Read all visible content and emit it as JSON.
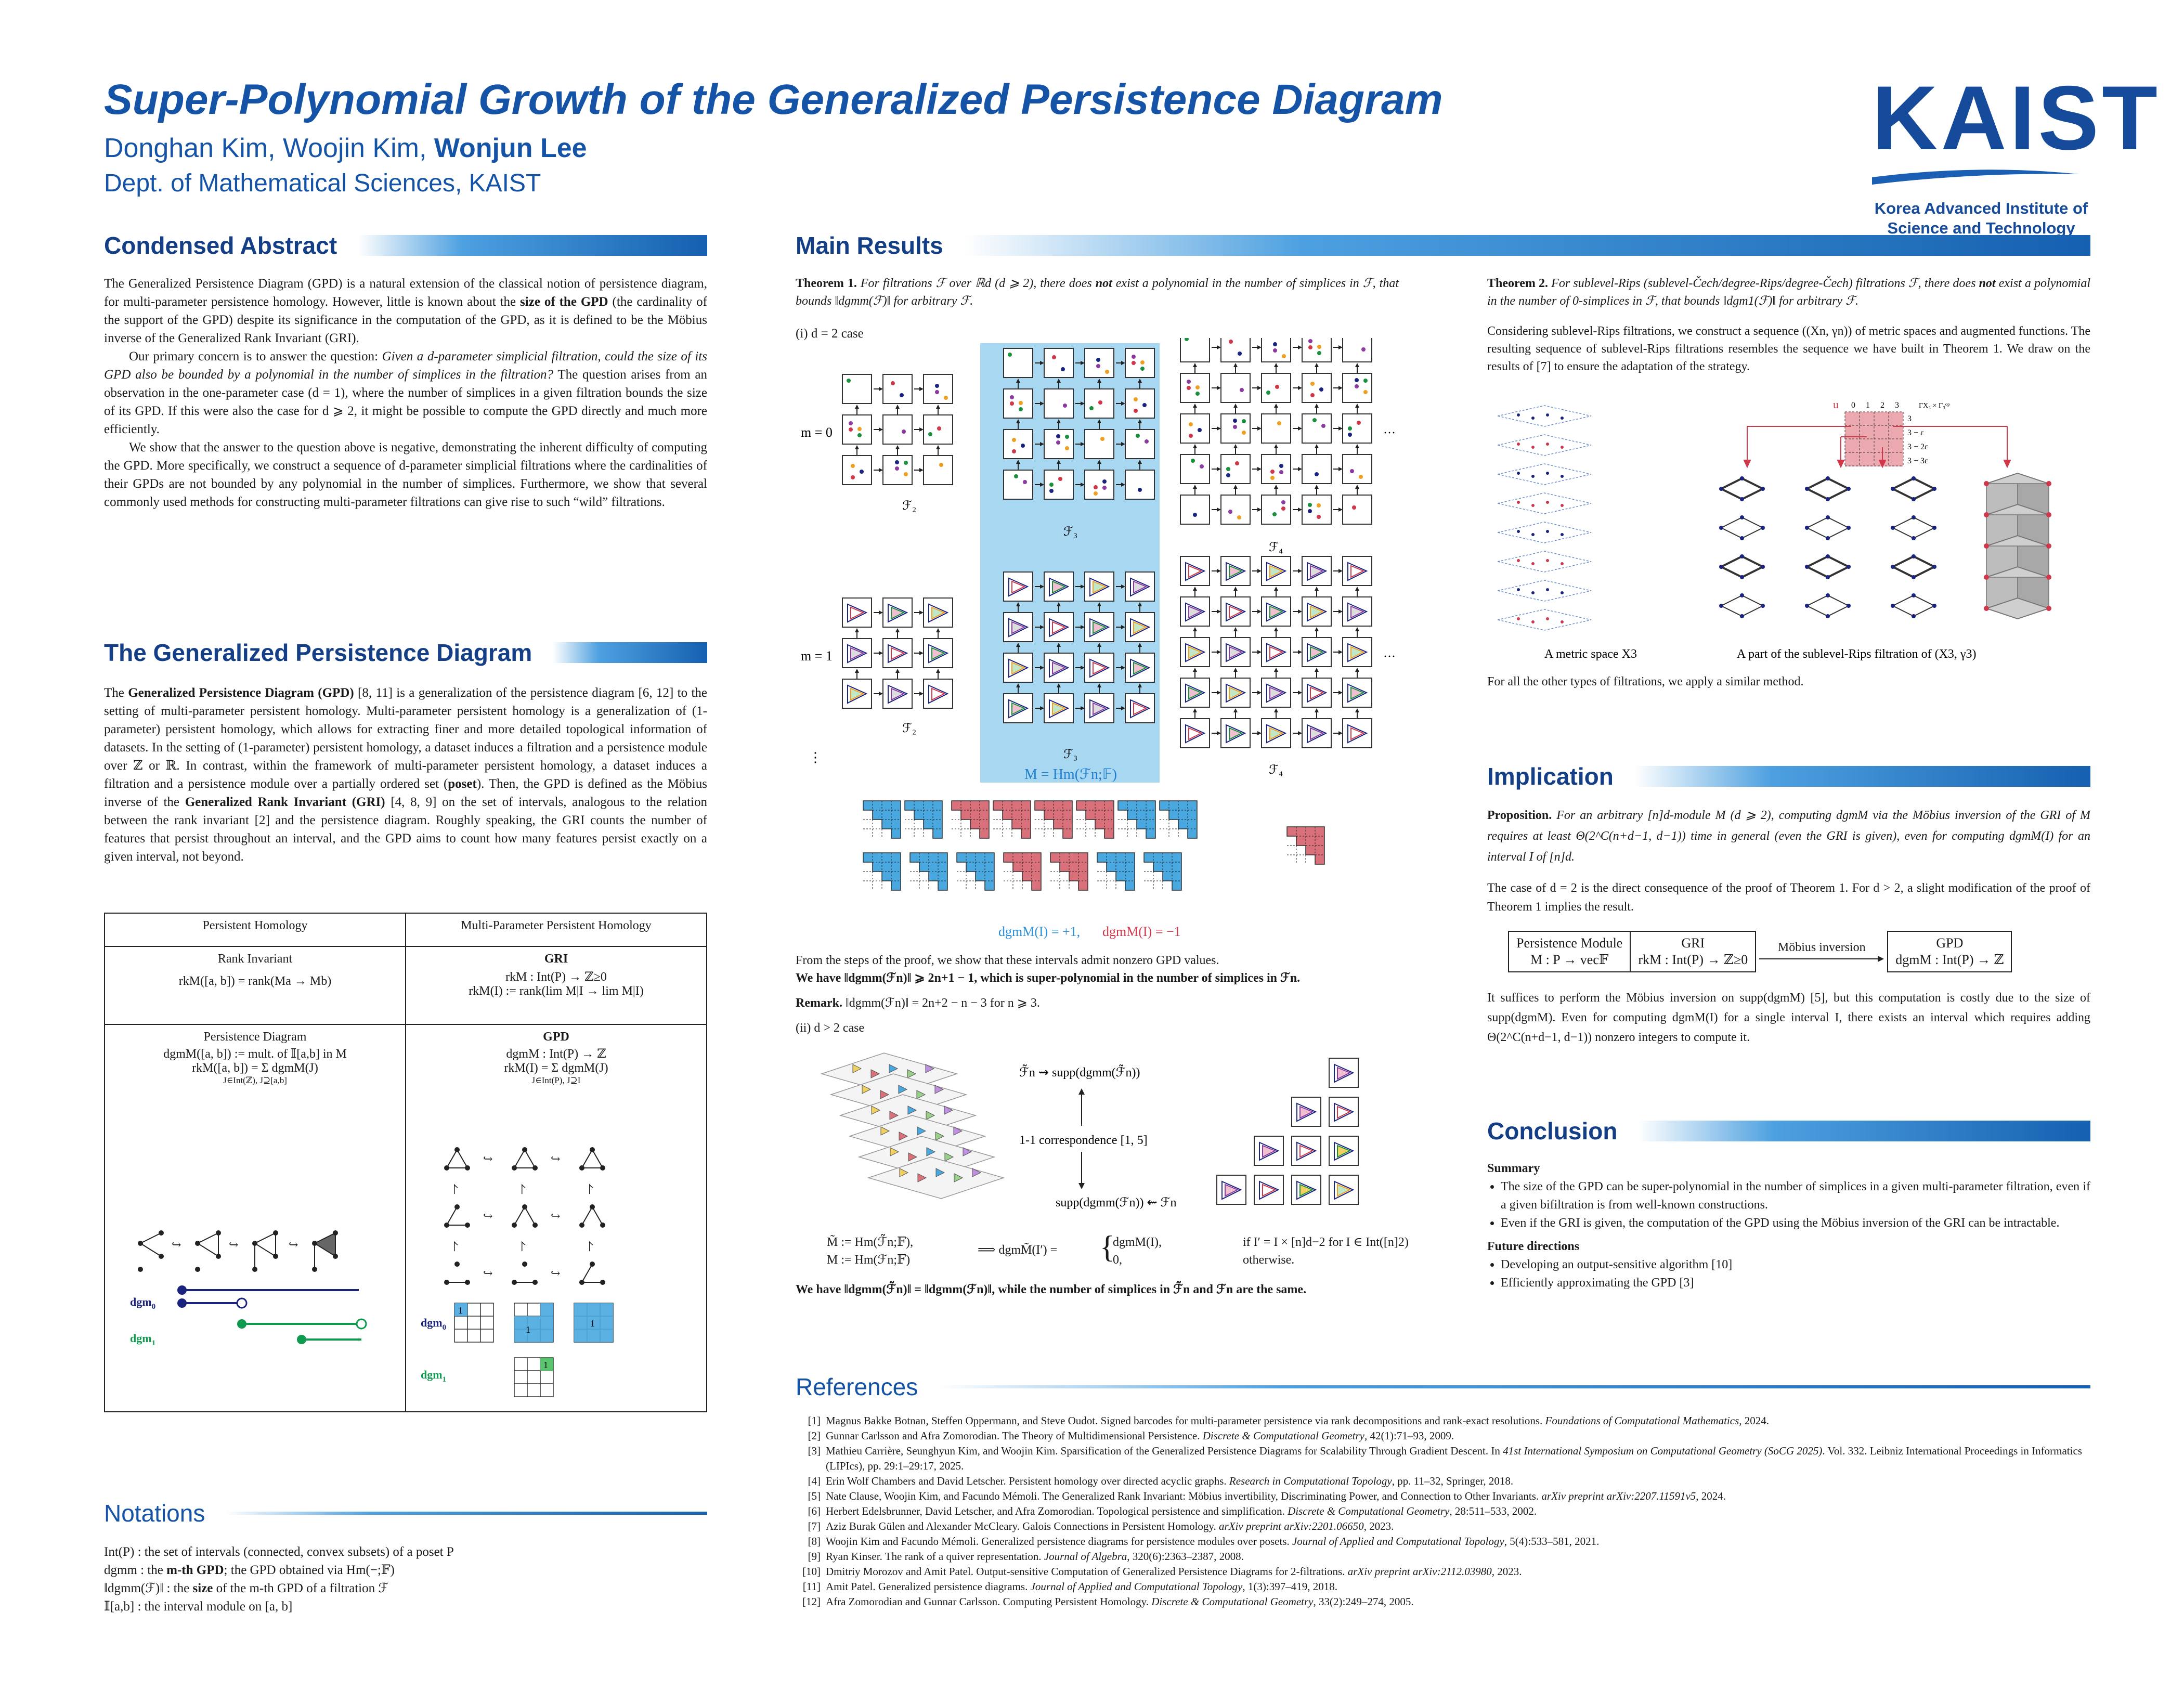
{
  "header": {
    "title": "Super-Polynomial Growth of the Generalized Persistence Diagram",
    "authors_plain": "Donghan Kim, Woojin Kim, ",
    "authors_bold": "Wonjun Lee",
    "dept": "Dept. of Mathematical Sciences, KAIST",
    "logo_text": "KAIST",
    "logo_line1": "Korea Advanced Institute of",
    "logo_line2": "Science and Technology"
  },
  "abstract": {
    "heading": "Condensed Abstract",
    "p1a": "The Generalized Persistence Diagram (GPD) is a natural extension of the classical notion of persistence diagram, for multi-parameter persistence homology. However, little is known about the ",
    "p1b": "size of the GPD",
    "p1c": " (the cardinality of the support of the GPD) despite its significance in the computation of the GPD, as it is defined to be the Möbius inverse of the Generalized Rank Invariant (GRI).",
    "p2a": "Our primary concern is to answer the question: ",
    "p2b": "Given a d-parameter simplicial filtration, could the size of its GPD also be bounded by a polynomial in the number of simplices in the filtration?",
    "p2c": " The question arises from an observation in the one-parameter case (d = 1), where the number of simplices in a given filtration bounds the size of its GPD. If this were also the case for d ⩾ 2, it might be possible to compute the GPD directly and much more efficiently.",
    "p3": "We show that the answer to the question above is negative, demonstrating the inherent difficulty of computing the GPD. More specifically, we construct a sequence of d-parameter simplicial filtrations where the cardinalities of their GPDs are not bounded by any polynomial in the number of simplices. Furthermore, we show that several commonly used methods for constructing multi-parameter filtrations can give rise to such “wild” filtrations."
  },
  "gpd_section": {
    "heading": "The Generalized Persistence Diagram",
    "t1": "The ",
    "t2": "Generalized Persistence Diagram (GPD)",
    "t3": " [8, 11] is a generalization of the persistence diagram [6, 12] to the setting of multi-parameter persistent homology. Multi-parameter persistent homology is a generalization of (1-parameter) persistent homology, which allows for extracting finer and more detailed topological information of datasets. In the setting of (1-parameter) persistent homology, a dataset induces a filtration and a persistence module over ℤ or ℝ. In contrast, within the framework of multi-parameter persistent homology, a dataset induces a filtration and a persistence module over a partially ordered set (",
    "t4": "poset",
    "t5": "). Then, the GPD is defined as the Möbius inverse of the ",
    "t6": "Generalized Rank Invariant (GRI)",
    "t7": " [4, 8, 9] on the set of intervals, analogous to the relation between the rank invariant [2] and the persistence diagram. Roughly speaking, the GRI counts the number of features that persist throughout an interval, and the GPD aims to count how many features persist exactly on a given interval, not beyond."
  },
  "table": {
    "col1": "Persistent Homology",
    "col2": "Multi-Parameter Persistent Homology",
    "r1c1_title": "Rank Invariant",
    "r1c1_formula": "rkM([a, b]) = rank(Ma → Mb)",
    "r1c2_title": "GRI",
    "r1c2_f1": "rkM : Int(P) → ℤ≥0",
    "r1c2_f2": "rkM(I) := rank(lim M|I → lim M|I)",
    "r2c1_title": "Persistence Diagram",
    "r2c1_f1": "dgmM([a, b]) := mult. of 𝕀[a,b] in M",
    "r2c1_f2": "rkM([a, b]) = Σ dgmM(J)",
    "r2c1_sub": "J∈Int(ℤ), J⊇[a,b]",
    "r2c2_title": "GPD",
    "r2c2_f1": "dgmM : Int(P) → ℤ",
    "r2c2_f2": "rkM(I) = Σ dgmM(J)",
    "r2c2_sub": "J∈Int(P), J⊇I",
    "dgm0": "dgm",
    "dgm0_sub": "0",
    "dgm1": "dgm",
    "dgm1_sub": "1",
    "cell_one": "1"
  },
  "notations": {
    "heading": "Notations",
    "n1": "Int(P) : the set of intervals (connected, convex subsets) of a poset P",
    "n2a": "dgmm : the ",
    "n2b": "m-th GPD",
    "n2c": "; the GPD obtained via Hm(−;𝔽)",
    "n3a": "‖dgmm(ℱ)‖ : the ",
    "n3b": "size",
    "n3c": " of the m-th GPD of a filtration ℱ",
    "n4": "𝕀[a,b] : the interval module on [a, b]"
  },
  "main": {
    "heading": "Main Results",
    "thm1_label": "Theorem 1.",
    "thm1_a": " For filtrations ℱ over ℝd (d ⩾ 2), there does ",
    "thm1_b": "not",
    "thm1_c": " exist a polynomial in the number of simplices in ℱ, that bounds ‖dgmm(ℱ)‖ for arbitrary ℱ.",
    "case1": "(i) d = 2 case",
    "m0": "m = 0",
    "m1": "m = 1",
    "vdots": "⋮",
    "dots": "···",
    "F2": "ℱ₂",
    "F3": "ℱ₃",
    "F4": "ℱ₄",
    "M_label": "M = Hm(ℱn;𝔽)",
    "dgm_plus": "dgmM(I) = +1,",
    "dgm_minus": "dgmM(I) = −1",
    "proof_line": "From the steps of the proof, we show that these intervals admit nonzero GPD values.",
    "bold_line": "We have ‖dgmm(ℱn)‖ ⩾ 2n+1 − 1, which is super-polynomial in the number of simplices in ℱn.",
    "remark_label": "Remark.",
    "remark": " ‖dgmm(ℱn)‖ = 2n+2 − n − 3 for n ⩾ 3.",
    "case2": "(ii) d > 2 case",
    "supp1": "ℱ̃n ⇝ supp(dgmm(ℱ̃n))",
    "corr": "1-1 correspondence [1, 5]",
    "supp2": "supp(dgmm(ℱn)) ⇜ ℱn",
    "defs1": "M̃ := Hm(ℱ̃n;𝔽),",
    "defs2": "M := Hm(ℱn;𝔽)",
    "implies": "⟹  dgmM̃(I′) =",
    "case_a": "dgmM(I),",
    "case_a_cond": "if I′ = I × [n]d−2 for I ∈ Int([n]2)",
    "case_b": "0,",
    "case_b_cond": "otherwise.",
    "final_bold": "We have ‖dgmm(ℱ̃n)‖ = ‖dgmm(ℱn)‖, while the number of simplices in ℱ̃n and ℱn are the same."
  },
  "thm2": {
    "label": "Theorem 2.",
    "a": " For sublevel-Rips (sublevel-Čech/degree-Rips/degree-Čech) filtrations ℱ, there does ",
    "b": "not",
    "c": " exist a polynomial in the number of 0-simplices in ℱ, that bounds ‖dgm1(ℱ)‖ for arbitrary ℱ.",
    "para": "Considering sublevel-Rips filtrations, we construct a sequence ((Xn, γn)) of metric spaces and augmented functions. The resulting sequence of sublevel-Rips filtrations resembles the sequence we have built in Theorem 1. We draw on the results of [7] to ensure the adaptation of the strategy.",
    "cap1": "A metric space X3",
    "cap2": "A part of the sublevel-Rips filtration of (X3, γ3)",
    "other": "For all the other types of filtrations, we apply a similar method.",
    "grid_u": "u",
    "grid_nums": [
      "0",
      "1",
      "2",
      "3"
    ],
    "grid_corner": "ΓX₃ × Γ₃ᵒᵖ",
    "grid_rows": [
      "3",
      "3 − ε",
      "3 − 2ε",
      "3 − 3ε"
    ]
  },
  "implication": {
    "heading": "Implication",
    "prop_label": "Proposition.",
    "prop_a": " For an arbitrary [n]d-module M (d ⩾ 2), computing dgmM via the Möbius inversion of the GRI of M requires at least Θ(2^C(n+d−1, d−1)) time in general (even the GRI is given), even for computing dgmM(I) for an interval I of [n]d.",
    "p1": "The case of d = 2 is the direct consequence of the proof of Theorem 1. For d > 2, a slight modification of the proof of Theorem 1 implies the result.",
    "box1a": "Persistence Module",
    "box1b": "M : P → vec𝔽",
    "box2a": "GRI",
    "box2b": "rkM : Int(P) → ℤ≥0",
    "arrow_label": "Möbius inversion",
    "box3a": "GPD",
    "box3b": "dgmM : Int(P) → ℤ",
    "p2": "It suffices to perform the Möbius inversion on supp(dgmM) [5], but this computation is costly due to the size of supp(dgmM). Even for computing dgmM(I) for a single interval I, there exists an interval which requires adding Θ(2^C(n+d−1, d−1)) nonzero integers to compute it."
  },
  "conclusion": {
    "heading": "Conclusion",
    "summary": "Summary",
    "s1": "The size of the GPD can be super-polynomial in the number of simplices in a given multi-parameter filtration, even if a given bifiltration is from well-known constructions.",
    "s2": "Even if the GRI is given, the computation of the GPD using the Möbius inversion of the GRI can be intractable.",
    "future": "Future directions",
    "f1": "Developing an output-sensitive algorithm [10]",
    "f2": "Efficiently approximating the GPD [3]"
  },
  "references": {
    "heading": "References",
    "items": [
      {
        "n": "[1]",
        "text": "Magnus Bakke Botnan, Steffen Oppermann, and Steve Oudot. Signed barcodes for multi-parameter persistence via rank decompositions and rank-exact resolutions. ",
        "venue": "Foundations of Computational Mathematics",
        "tail": ", 2024."
      },
      {
        "n": "[2]",
        "text": "Gunnar Carlsson and Afra Zomorodian. The Theory of Multidimensional Persistence. ",
        "venue": "Discrete & Computational Geometry",
        "tail": ", 42(1):71–93, 2009."
      },
      {
        "n": "[3]",
        "text": "Mathieu Carrière, Seunghyun Kim, and Woojin Kim. Sparsification of the Generalized Persistence Diagrams for Scalability Through Gradient Descent. In ",
        "venue": "41st International Symposium on Computational Geometry (SoCG 2025)",
        "tail": ". Vol. 332. Leibniz International Proceedings in Informatics (LIPIcs), pp. 29:1–29:17, 2025."
      },
      {
        "n": "[4]",
        "text": "Erin Wolf Chambers and David Letscher. Persistent homology over directed acyclic graphs. ",
        "venue": "Research in Computational Topology",
        "tail": ", pp. 11–32, Springer, 2018."
      },
      {
        "n": "[5]",
        "text": "Nate Clause, Woojin Kim, and Facundo Mémoli. The Generalized Rank Invariant: Möbius invertibility, Discriminating Power, and Connection to Other Invariants. ",
        "venue": "arXiv preprint arXiv:2207.11591v5",
        "tail": ", 2024."
      },
      {
        "n": "[6]",
        "text": "Herbert Edelsbrunner, David Letscher, and Afra Zomorodian. Topological persistence and simplification. ",
        "venue": "Discrete & Computational Geometry",
        "tail": ", 28:511–533, 2002."
      },
      {
        "n": "[7]",
        "text": "Aziz Burak Gülen and Alexander McCleary. Galois Connections in Persistent Homology. ",
        "venue": "arXiv preprint arXiv:2201.06650",
        "tail": ", 2023."
      },
      {
        "n": "[8]",
        "text": "Woojin Kim and Facundo Mémoli. Generalized persistence diagrams for persistence modules over posets. ",
        "venue": "Journal of Applied and Computational Topology",
        "tail": ", 5(4):533–581, 2021."
      },
      {
        "n": "[9]",
        "text": "Ryan Kinser. The rank of a quiver representation. ",
        "venue": "Journal of Algebra",
        "tail": ", 320(6):2363–2387, 2008."
      },
      {
        "n": "[10]",
        "text": "Dmitriy Morozov and Amit Patel. Output-sensitive Computation of Generalized Persistence Diagrams for 2-filtrations. ",
        "venue": "arXiv preprint arXiv:2112.03980",
        "tail": ", 2023."
      },
      {
        "n": "[11]",
        "text": "Amit Patel. Generalized persistence diagrams. ",
        "venue": "Journal of Applied and Computational Topology",
        "tail": ", 1(3):397–419, 2018."
      },
      {
        "n": "[12]",
        "text": "Afra Zomorodian and Gunnar Carlsson. Computing Persistent Homology. ",
        "venue": "Discrete & Computational Geometry",
        "tail": ", 33(2):249–274, 2005."
      }
    ]
  },
  "colors": {
    "brand": "#1553a6",
    "heading": "#143f86",
    "blue_interval": "#4aa8e0",
    "red_interval": "#d9707a",
    "dgm0": "#1a237e",
    "dgm1": "#0f9a50"
  }
}
